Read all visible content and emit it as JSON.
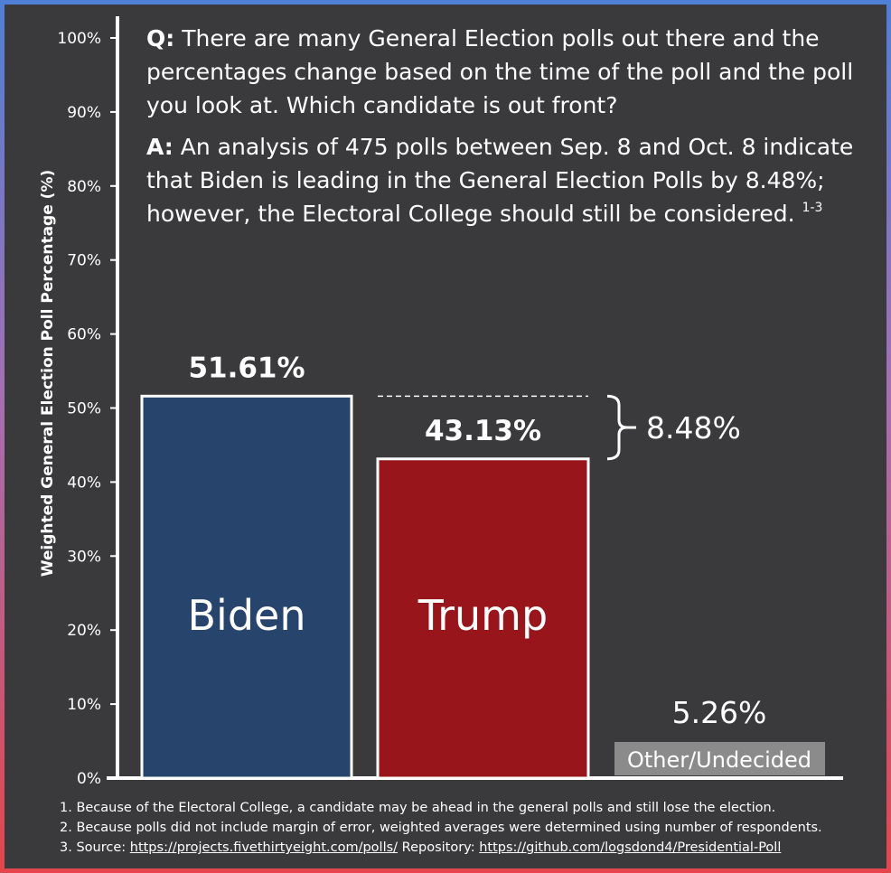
{
  "question": {
    "prefix": "Q:",
    "text": " There are many General Election polls out there and the percentages change based on the time of the poll and the poll you look at. Which candidate is out front?"
  },
  "answer": {
    "prefix": "A:",
    "text": " An analysis of 475 polls between Sep. 8 and Oct. 8 indicate that Biden is leading in the General Election Polls by 8.48%; however, the Electoral College should still be considered.",
    "superscript": "1-3"
  },
  "footnotes": {
    "note1": "1. Because of the Electoral College, a candidate may be ahead in the general polls and still lose the election.",
    "note2": "2. Because polls did not include  margin of error, weighted averages were determined using number of respondents.",
    "note3_prefix": "3. Source: ",
    "note3_link1": "https://projects.fivethirtyeight.com/polls/",
    "note3_mid": " Repository: ",
    "note3_link2": "https://github.com/logsdond4/Presidential-Poll"
  },
  "chart_data": {
    "type": "bar",
    "categories": [
      "Biden",
      "Trump",
      "Other/Undecided"
    ],
    "values": [
      51.61,
      43.13,
      5.26
    ],
    "value_labels": [
      "51.61%",
      "43.13%",
      "5.26%"
    ],
    "ylabel": "Weighted General Election Poll Percentage (%)",
    "ylim": [
      0,
      100
    ],
    "yticks": [
      0,
      10,
      20,
      30,
      40,
      50,
      60,
      70,
      80,
      90,
      100
    ],
    "ytick_labels": [
      "0%",
      "10%",
      "20%",
      "30%",
      "40%",
      "50%",
      "60%",
      "70%",
      "80%",
      "90%",
      "100%"
    ],
    "grid": false,
    "colors": [
      "#27446c",
      "#98161b",
      "#3a3a3c"
    ],
    "annotation": {
      "type": "difference-brace",
      "from": 51.61,
      "to": 43.13,
      "label": "8.48%"
    }
  }
}
